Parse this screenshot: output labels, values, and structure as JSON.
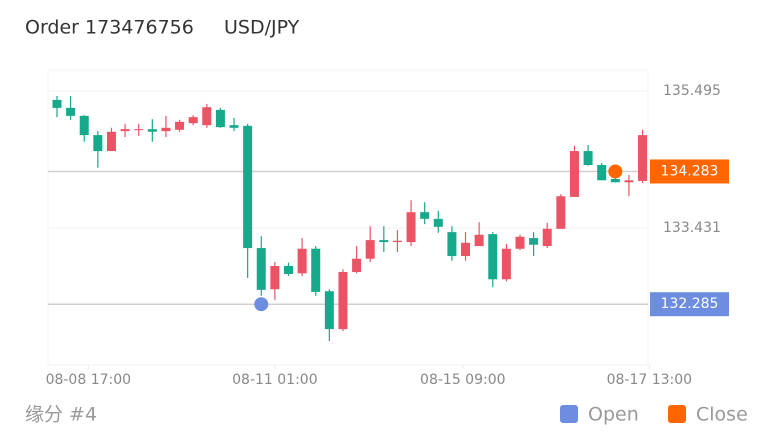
{
  "header": {
    "title": "Order 173476756",
    "symbol": "USD/JPY"
  },
  "chart_data": {
    "type": "candlestick",
    "open": [
      135.36,
      135.24,
      135.12,
      134.83,
      134.59,
      134.89,
      134.91,
      134.92,
      134.89,
      134.91,
      135.01,
      134.98,
      135.21,
      134.98,
      134.97,
      133.13,
      132.51,
      132.86,
      132.75,
      133.12,
      132.48,
      131.91,
      132.77,
      132.97,
      133.25,
      133.22,
      133.22,
      133.67,
      133.57,
      133.37,
      133.01,
      133.16,
      133.34,
      132.66,
      133.12,
      133.28,
      133.16,
      133.42,
      133.9,
      134.59,
      134.38,
      134.17,
      134.12,
      134.14
    ],
    "high": [
      135.42,
      135.42,
      135.13,
      134.89,
      134.94,
      135.0,
      135.0,
      135.07,
      135.12,
      135.06,
      135.13,
      135.3,
      135.24,
      135.09,
      135.0,
      133.31,
      132.92,
      132.91,
      133.28,
      133.16,
      132.51,
      132.81,
      133.16,
      133.46,
      133.46,
      133.4,
      133.85,
      133.82,
      133.69,
      133.46,
      133.37,
      133.52,
      133.37,
      133.19,
      133.33,
      133.37,
      133.51,
      133.94,
      134.67,
      134.68,
      134.41,
      134.31,
      134.23,
      134.91
    ],
    "low": [
      135.1,
      135.06,
      134.73,
      134.34,
      134.59,
      134.8,
      134.82,
      134.73,
      134.8,
      134.88,
      134.98,
      134.94,
      134.94,
      134.89,
      132.68,
      132.41,
      132.35,
      132.71,
      132.71,
      132.41,
      131.73,
      131.88,
      132.75,
      132.92,
      133.07,
      133.07,
      133.16,
      133.49,
      133.36,
      132.94,
      132.94,
      133.16,
      132.54,
      132.63,
      133.1,
      133.01,
      133.13,
      133.42,
      133.9,
      134.37,
      134.15,
      134.12,
      133.91,
      134.11
    ],
    "close": [
      135.24,
      135.12,
      134.83,
      134.59,
      134.88,
      134.92,
      134.92,
      134.88,
      134.94,
      135.03,
      135.1,
      135.25,
      134.95,
      134.94,
      133.13,
      132.5,
      132.86,
      132.74,
      133.12,
      132.47,
      131.91,
      132.77,
      132.97,
      133.25,
      133.22,
      133.24,
      133.67,
      133.57,
      133.45,
      133.01,
      133.21,
      133.33,
      132.66,
      133.12,
      133.3,
      133.18,
      133.42,
      133.91,
      134.59,
      134.38,
      134.15,
      134.12,
      134.15,
      134.83
    ],
    "up_color": "#ec5466",
    "down_color": "#17a98b",
    "ylim": [
      131.37,
      135.81
    ],
    "yticks": [
      135.495,
      133.431
    ],
    "xlim": [
      -0.66,
      43.4
    ],
    "xticks": [
      {
        "value": 2.3,
        "label": "08-08 17:00"
      },
      {
        "value": 16.0,
        "label": "08-11 01:00"
      },
      {
        "value": 29.8,
        "label": "08-15 09:00"
      },
      {
        "value": 43.5,
        "label": "08-17 13:00"
      }
    ],
    "grid": true,
    "markers": [
      {
        "name": "Open",
        "color": "#6d8ee0",
        "x": 15,
        "y": 132.285
      },
      {
        "name": "Close",
        "color": "#ff6600",
        "x": 41,
        "y": 134.283
      }
    ]
  },
  "footer": "缘分 #4"
}
